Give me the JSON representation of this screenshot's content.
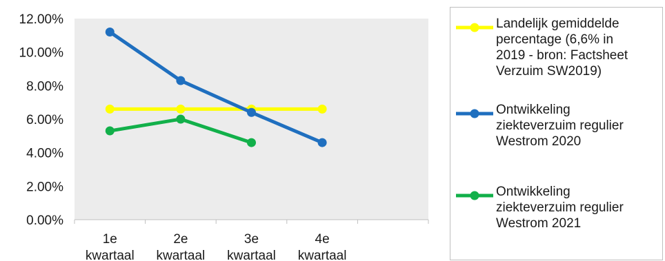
{
  "chart_data": {
    "type": "line",
    "categories": [
      "1e kwartaal",
      "2e kwartaal",
      "3e kwartaal",
      "4e kwartaal"
    ],
    "category_lines": [
      [
        "1e",
        "kwartaal"
      ],
      [
        "2e",
        "kwartaal"
      ],
      [
        "3e",
        "kwartaal"
      ],
      [
        "4e",
        "kwartaal"
      ]
    ],
    "ylim": [
      0,
      0.12
    ],
    "yticks": [
      0,
      0.02,
      0.04,
      0.06,
      0.08,
      0.1,
      0.12
    ],
    "ytick_labels": [
      "0.00%",
      "2.00%",
      "4.00%",
      "6.00%",
      "8.00%",
      "10.00%",
      "12.00%"
    ],
    "grid": false,
    "legend_position": "right",
    "series": [
      {
        "name": "Landelijk gemiddelde percentage (6,6% in 2019 - bron: Factsheet Verzuim SW2019)",
        "color": "#ffff00",
        "values": [
          0.066,
          0.066,
          0.066,
          0.066
        ]
      },
      {
        "name": "Ontwikkeling ziekteverzuim regulier Westrom 2020",
        "color": "#1f6fbf",
        "values": [
          0.112,
          0.083,
          0.064,
          0.046
        ]
      },
      {
        "name": "Ontwikkeling ziekteverzuim regulier Westrom 2021",
        "color": "#12b04a",
        "values": [
          0.053,
          0.06,
          0.046,
          null
        ]
      }
    ],
    "legend": [
      {
        "lines": [
          "Landelijk gemiddelde",
          "percentage (6,6% in",
          "2019 - bron: Factsheet",
          "Verzuim SW2019)"
        ]
      },
      {
        "lines": [
          "Ontwikkeling",
          "ziekteverzuim regulier",
          "Westrom 2020"
        ]
      },
      {
        "lines": [
          "Ontwikkeling",
          "ziekteverzuim regulier",
          "Westrom 2021"
        ]
      }
    ]
  }
}
